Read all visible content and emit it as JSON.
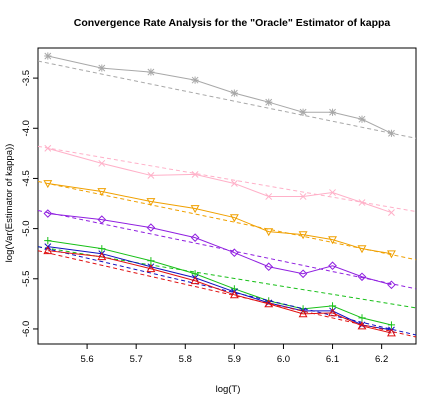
{
  "chart_data": {
    "type": "line",
    "title": "Convergence Rate Analysis for the \"Oracle\" Estimator of kappa",
    "xlabel": "log(T)",
    "ylabel": "log(Var(Estimator of kappa))",
    "xlim": [
      5.5,
      6.27
    ],
    "ylim": [
      -6.15,
      -3.2
    ],
    "xticks": [
      5.6,
      5.7,
      5.8,
      5.9,
      6.0,
      6.1,
      6.2
    ],
    "xtick_labels": [
      "5.6",
      "5.7",
      "5.8",
      "5.9",
      "6.0",
      "6.1",
      "6.2"
    ],
    "yticks": [
      -3.5,
      -4.0,
      -4.5,
      -5.0,
      -5.5,
      -6.0
    ],
    "ytick_labels": [
      "-3.5",
      "-4.0",
      "-4.5",
      "-5.0",
      "-5.5",
      "-6.0"
    ],
    "x": [
      5.52,
      5.63,
      5.73,
      5.82,
      5.9,
      5.97,
      6.04,
      6.1,
      6.16,
      6.22
    ],
    "series": [
      {
        "color": "#a8a8a8",
        "marker": "asterisk",
        "values": [
          -3.28,
          -3.4,
          -3.44,
          -3.52,
          -3.65,
          -3.74,
          -3.84,
          -3.84,
          -3.91,
          -4.05
        ],
        "fit": [
          -3.33,
          -4.1
        ]
      },
      {
        "color": "#ffb0c8",
        "marker": "cross",
        "values": [
          -4.2,
          -4.35,
          -4.47,
          -4.46,
          -4.55,
          -4.68,
          -4.68,
          -4.64,
          -4.74,
          -4.84
        ],
        "fit": [
          -4.18,
          -4.83
        ]
      },
      {
        "color": "#f0a000",
        "marker": "triangle-down",
        "values": [
          -4.55,
          -4.63,
          -4.73,
          -4.8,
          -4.89,
          -5.03,
          -5.06,
          -5.11,
          -5.2,
          -5.25
        ],
        "fit": [
          -4.53,
          -5.31
        ]
      },
      {
        "color": "#9020e0",
        "marker": "diamond",
        "values": [
          -4.85,
          -4.91,
          -4.99,
          -5.09,
          -5.24,
          -5.38,
          -5.45,
          -5.37,
          -5.48,
          -5.56
        ],
        "fit": [
          -4.82,
          -5.6
        ]
      },
      {
        "color": "#18c018",
        "marker": "plus",
        "values": [
          -5.12,
          -5.2,
          -5.32,
          -5.45,
          -5.6,
          -5.72,
          -5.8,
          -5.77,
          -5.89,
          -5.96
        ],
        "fit": [
          -5.18,
          -5.79
        ]
      },
      {
        "color": "#1010c0",
        "marker": "cross",
        "values": [
          -5.18,
          -5.25,
          -5.38,
          -5.49,
          -5.63,
          -5.74,
          -5.82,
          -5.82,
          -5.96,
          -6.01
        ],
        "fit": [
          -5.18,
          -6.06
        ]
      },
      {
        "color": "#e01010",
        "marker": "triangle-up",
        "values": [
          -5.22,
          -5.28,
          -5.4,
          -5.52,
          -5.66,
          -5.75,
          -5.85,
          -5.84,
          -5.97,
          -6.04
        ],
        "fit": [
          -5.22,
          -6.08
        ]
      }
    ]
  }
}
